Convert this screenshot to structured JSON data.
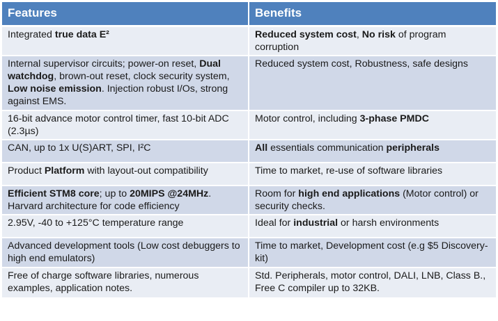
{
  "headers": {
    "features": "Features",
    "benefits": "Benefits"
  },
  "rows": [
    {
      "feature": [
        {
          "t": "Integrated "
        },
        {
          "t": "true data E²",
          "b": true
        }
      ],
      "benefit": [
        {
          "t": "Reduced system cost",
          "b": true
        },
        {
          "t": ", "
        },
        {
          "t": "No risk",
          "b": true
        },
        {
          "t": " of program corruption"
        }
      ]
    },
    {
      "feature": [
        {
          "t": "Internal supervisor circuits; power-on reset, "
        },
        {
          "t": "Dual watchdog",
          "b": true
        },
        {
          "t": ", brown-out reset, clock security system, "
        },
        {
          "t": "Low noise emission",
          "b": true
        },
        {
          "t": ". Injection robust I/Os, strong against EMS."
        }
      ],
      "benefit": [
        {
          "t": "Reduced system cost, Robustness, safe designs"
        }
      ]
    },
    {
      "feature": [
        {
          "t": "16-bit advance motor control timer, fast 10-bit ADC (2.3µs)"
        }
      ],
      "benefit": [
        {
          "t": "Motor control, including "
        },
        {
          "t": "3-phase PMDC",
          "b": true
        }
      ]
    },
    {
      "feature": [
        {
          "t": "CAN, up to 1x U(S)ART, SPI, I²C"
        }
      ],
      "benefit": [
        {
          "t": "All",
          "b": true
        },
        {
          "t": " essentials communication "
        },
        {
          "t": "peripherals",
          "b": true
        }
      ]
    },
    {
      "feature": [
        {
          "t": "Product "
        },
        {
          "t": "Platform",
          "b": true
        },
        {
          "t": " with layout-out compatibility"
        }
      ],
      "benefit": [
        {
          "t": "Time to market, re-use of software libraries"
        }
      ]
    },
    {
      "feature": [
        {
          "t": "Efficient STM8 core",
          "b": true
        },
        {
          "t": "; up to "
        },
        {
          "t": "20MIPS @24MHz",
          "b": true
        },
        {
          "t": ". Harvard architecture for code efficiency"
        }
      ],
      "benefit": [
        {
          "t": "Room for "
        },
        {
          "t": "high end applications",
          "b": true
        },
        {
          "t": " (Motor control) or security checks."
        }
      ]
    },
    {
      "feature": [
        {
          "t": "2.95V, -40 to +125°C temperature range"
        }
      ],
      "benefit": [
        {
          "t": "Ideal for "
        },
        {
          "t": "industrial",
          "b": true
        },
        {
          "t": " or harsh environments"
        }
      ]
    },
    {
      "feature": [
        {
          "t": "Advanced development tools (Low cost debuggers to high end emulators)"
        }
      ],
      "benefit": [
        {
          "t": "Time to market, Development cost (e.g $5 Discovery-kit)"
        }
      ]
    },
    {
      "feature": [
        {
          "t": "Free of charge software libraries, numerous examples, application notes."
        }
      ],
      "benefit": [
        {
          "t": "Std. Peripherals, motor control, DALI, LNB, Class B., Free C compiler up to 32KB."
        }
      ]
    }
  ]
}
